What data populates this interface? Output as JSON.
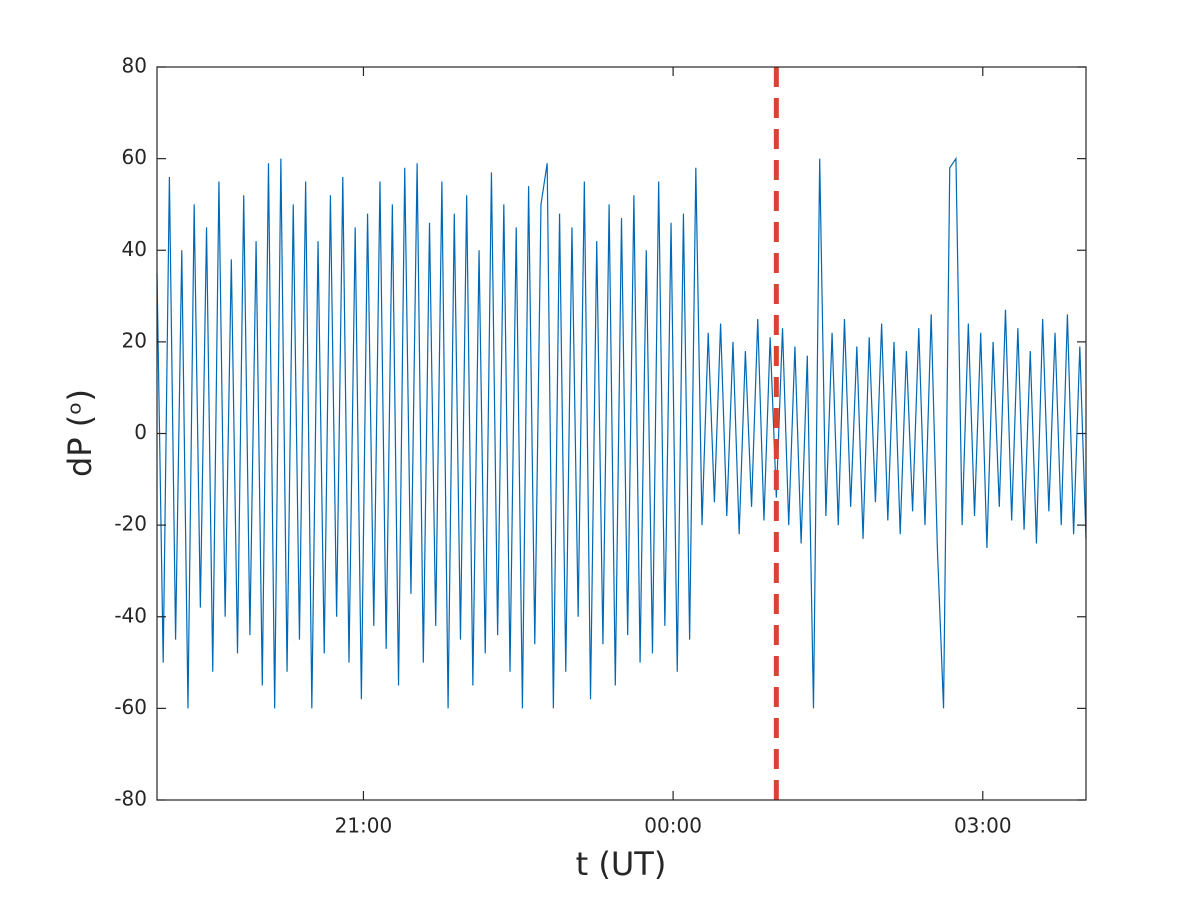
{
  "chart_data": {
    "type": "line",
    "xlabel": "t (UT)",
    "ylabel": "dP (ᵒ)",
    "xlim": [
      19,
      28
    ],
    "xticks": [
      {
        "value": 21,
        "label": "21:00"
      },
      {
        "value": 24,
        "label": "00:00"
      },
      {
        "value": 27,
        "label": "03:00"
      }
    ],
    "ylim": [
      -80,
      80
    ],
    "yticks": [
      -80,
      -60,
      -40,
      -20,
      0,
      20,
      40,
      60,
      80
    ],
    "grid": false,
    "vline": {
      "x": 25,
      "color": "#d9432f",
      "dashed": true
    },
    "x": [
      19,
      19.06,
      19.12,
      19.18,
      19.24,
      19.3,
      19.36,
      19.42,
      19.48,
      19.54,
      19.6,
      19.66,
      19.72,
      19.78,
      19.84,
      19.9,
      19.96,
      20.02,
      20.08,
      20.14,
      20.2,
      20.26,
      20.32,
      20.38,
      20.44,
      20.5,
      20.56,
      20.62,
      20.68,
      20.74,
      20.8,
      20.86,
      20.92,
      20.98,
      21.04,
      21.1,
      21.16,
      21.22,
      21.28,
      21.34,
      21.4,
      21.46,
      21.52,
      21.58,
      21.64,
      21.7,
      21.76,
      21.82,
      21.88,
      21.94,
      22,
      22.06,
      22.12,
      22.18,
      22.24,
      22.3,
      22.36,
      22.42,
      22.48,
      22.54,
      22.6,
      22.66,
      22.72,
      22.78,
      22.84,
      22.9,
      22.96,
      23.02,
      23.08,
      23.14,
      23.2,
      23.26,
      23.32,
      23.38,
      23.44,
      23.5,
      23.56,
      23.62,
      23.68,
      23.74,
      23.8,
      23.86,
      23.92,
      23.98,
      24.04,
      24.1,
      24.16,
      24.22,
      24.28,
      24.34,
      24.4,
      24.46,
      24.52,
      24.58,
      24.64,
      24.7,
      24.76,
      24.82,
      24.88,
      24.94,
      25,
      25.06,
      25.12,
      25.18,
      25.24,
      25.3,
      25.36,
      25.42,
      25.48,
      25.54,
      25.6,
      25.66,
      25.72,
      25.78,
      25.84,
      25.9,
      25.96,
      26.02,
      26.08,
      26.14,
      26.2,
      26.26,
      26.32,
      26.38,
      26.44,
      26.5,
      26.56,
      26.62,
      26.68,
      26.74,
      26.8,
      26.86,
      26.92,
      26.98,
      27.04,
      27.1,
      27.16,
      27.22,
      27.28,
      27.34,
      27.4,
      27.46,
      27.52,
      27.58,
      27.64,
      27.7,
      27.76,
      27.82,
      27.88,
      27.94,
      28
    ],
    "series": [
      {
        "color": "#0068b5",
        "values": [
          35,
          -50,
          56,
          -45,
          40,
          -60,
          50,
          -38,
          45,
          -52,
          55,
          -40,
          38,
          -48,
          52,
          -44,
          42,
          -55,
          59,
          -60,
          60,
          -52,
          50,
          -45,
          55,
          -60,
          42,
          -48,
          52,
          -40,
          56,
          -50,
          45,
          -58,
          48,
          -42,
          55,
          -47,
          50,
          -55,
          58,
          -35,
          59,
          -50,
          46,
          -42,
          55,
          -60,
          48,
          -45,
          52,
          -55,
          40,
          -48,
          57,
          -44,
          50,
          -52,
          45,
          -60,
          54,
          -46,
          50,
          59,
          -60,
          48,
          -52,
          45,
          -40,
          55,
          -58,
          42,
          -46,
          50,
          -55,
          47,
          -44,
          52,
          -50,
          40,
          -48,
          55,
          -42,
          46,
          -52,
          48,
          -45,
          58,
          -20,
          22,
          -15,
          24,
          -18,
          20,
          -22,
          18,
          -16,
          25,
          -19,
          21,
          -14,
          23,
          -20,
          19,
          -24,
          17,
          -60,
          60,
          -18,
          22,
          -20,
          25,
          -16,
          19,
          -23,
          21,
          -15,
          24,
          -19,
          20,
          -22,
          18,
          -17,
          23,
          -20,
          26,
          -25,
          -60,
          58,
          60,
          -20,
          24,
          -18,
          22,
          -25,
          20,
          -16,
          27,
          -19,
          23,
          -21,
          18,
          -24,
          25,
          -17,
          22,
          -20,
          26,
          -22,
          19,
          -23
        ]
      }
    ]
  }
}
